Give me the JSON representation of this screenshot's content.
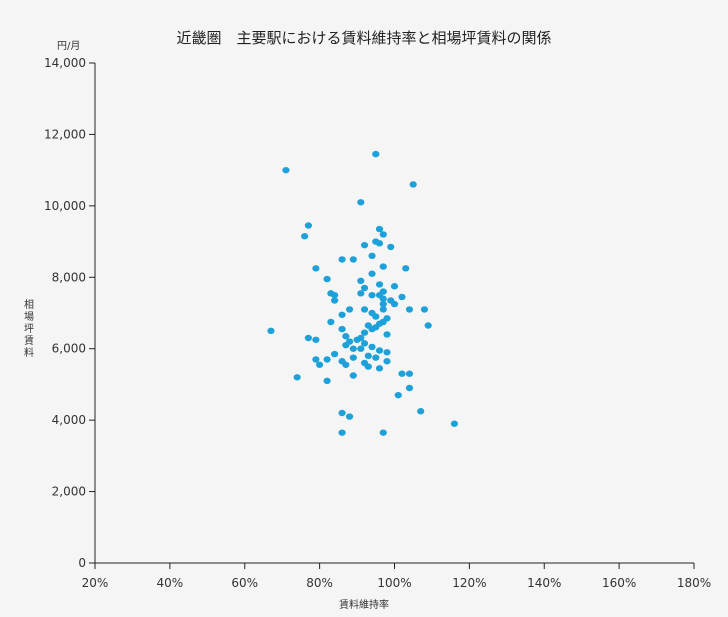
{
  "chart_data": {
    "type": "scatter",
    "title": "近畿圏　主要駅における賃料維持率と相場坪賃料の関係",
    "xlabel": "賃料維持率",
    "ylabel": "相場坪賃料",
    "y_unit": "円/月",
    "xlim": [
      20,
      180
    ],
    "ylim": [
      0,
      14000
    ],
    "x_ticks": [
      "20%",
      "40%",
      "60%",
      "80%",
      "100%",
      "120%",
      "140%",
      "160%",
      "180%"
    ],
    "y_ticks": [
      "0",
      "2,000",
      "4,000",
      "6,000",
      "8,000",
      "10,000",
      "12,000",
      "14,000"
    ],
    "grid": false,
    "point_color": "#1ea1d9",
    "points": [
      {
        "x": 71,
        "y": 11000
      },
      {
        "x": 95,
        "y": 11450
      },
      {
        "x": 105,
        "y": 10600
      },
      {
        "x": 91,
        "y": 10100
      },
      {
        "x": 77,
        "y": 9450
      },
      {
        "x": 76,
        "y": 9150
      },
      {
        "x": 96,
        "y": 9350
      },
      {
        "x": 97,
        "y": 9200
      },
      {
        "x": 95,
        "y": 9000
      },
      {
        "x": 96,
        "y": 8950
      },
      {
        "x": 92,
        "y": 8900
      },
      {
        "x": 99,
        "y": 8850
      },
      {
        "x": 94,
        "y": 8600
      },
      {
        "x": 86,
        "y": 8500
      },
      {
        "x": 89,
        "y": 8500
      },
      {
        "x": 97,
        "y": 8300
      },
      {
        "x": 79,
        "y": 8250
      },
      {
        "x": 103,
        "y": 8250
      },
      {
        "x": 94,
        "y": 8100
      },
      {
        "x": 82,
        "y": 7950
      },
      {
        "x": 91,
        "y": 7900
      },
      {
        "x": 96,
        "y": 7800
      },
      {
        "x": 100,
        "y": 7750
      },
      {
        "x": 92,
        "y": 7700
      },
      {
        "x": 97,
        "y": 7600
      },
      {
        "x": 91,
        "y": 7550
      },
      {
        "x": 83,
        "y": 7550
      },
      {
        "x": 84,
        "y": 7500
      },
      {
        "x": 94,
        "y": 7500
      },
      {
        "x": 96,
        "y": 7500
      },
      {
        "x": 102,
        "y": 7450
      },
      {
        "x": 97,
        "y": 7400
      },
      {
        "x": 84,
        "y": 7350
      },
      {
        "x": 99,
        "y": 7350
      },
      {
        "x": 97,
        "y": 7250
      },
      {
        "x": 100,
        "y": 7250
      },
      {
        "x": 88,
        "y": 7100
      },
      {
        "x": 92,
        "y": 7100
      },
      {
        "x": 97,
        "y": 7100
      },
      {
        "x": 104,
        "y": 7100
      },
      {
        "x": 108,
        "y": 7100
      },
      {
        "x": 94,
        "y": 7000
      },
      {
        "x": 86,
        "y": 6950
      },
      {
        "x": 95,
        "y": 6900
      },
      {
        "x": 98,
        "y": 6850
      },
      {
        "x": 97,
        "y": 6750
      },
      {
        "x": 83,
        "y": 6750
      },
      {
        "x": 96,
        "y": 6700
      },
      {
        "x": 93,
        "y": 6650
      },
      {
        "x": 109,
        "y": 6650
      },
      {
        "x": 95,
        "y": 6600
      },
      {
        "x": 94,
        "y": 6550
      },
      {
        "x": 86,
        "y": 6550
      },
      {
        "x": 67,
        "y": 6500
      },
      {
        "x": 92,
        "y": 6450
      },
      {
        "x": 98,
        "y": 6400
      },
      {
        "x": 87,
        "y": 6350
      },
      {
        "x": 91,
        "y": 6300
      },
      {
        "x": 77,
        "y": 6300
      },
      {
        "x": 90,
        "y": 6250
      },
      {
        "x": 79,
        "y": 6250
      },
      {
        "x": 88,
        "y": 6200
      },
      {
        "x": 92,
        "y": 6150
      },
      {
        "x": 87,
        "y": 6100
      },
      {
        "x": 94,
        "y": 6050
      },
      {
        "x": 89,
        "y": 6000
      },
      {
        "x": 91,
        "y": 6000
      },
      {
        "x": 96,
        "y": 5950
      },
      {
        "x": 98,
        "y": 5900
      },
      {
        "x": 84,
        "y": 5850
      },
      {
        "x": 93,
        "y": 5800
      },
      {
        "x": 95,
        "y": 5750
      },
      {
        "x": 89,
        "y": 5750
      },
      {
        "x": 82,
        "y": 5700
      },
      {
        "x": 79,
        "y": 5700
      },
      {
        "x": 98,
        "y": 5650
      },
      {
        "x": 86,
        "y": 5650
      },
      {
        "x": 92,
        "y": 5600
      },
      {
        "x": 80,
        "y": 5550
      },
      {
        "x": 87,
        "y": 5550
      },
      {
        "x": 93,
        "y": 5500
      },
      {
        "x": 96,
        "y": 5450
      },
      {
        "x": 102,
        "y": 5300
      },
      {
        "x": 104,
        "y": 5300
      },
      {
        "x": 89,
        "y": 5250
      },
      {
        "x": 74,
        "y": 5200
      },
      {
        "x": 82,
        "y": 5100
      },
      {
        "x": 104,
        "y": 4900
      },
      {
        "x": 101,
        "y": 4700
      },
      {
        "x": 107,
        "y": 4250
      },
      {
        "x": 86,
        "y": 4200
      },
      {
        "x": 88,
        "y": 4100
      },
      {
        "x": 116,
        "y": 3900
      },
      {
        "x": 86,
        "y": 3650
      },
      {
        "x": 97,
        "y": 3650
      }
    ]
  }
}
